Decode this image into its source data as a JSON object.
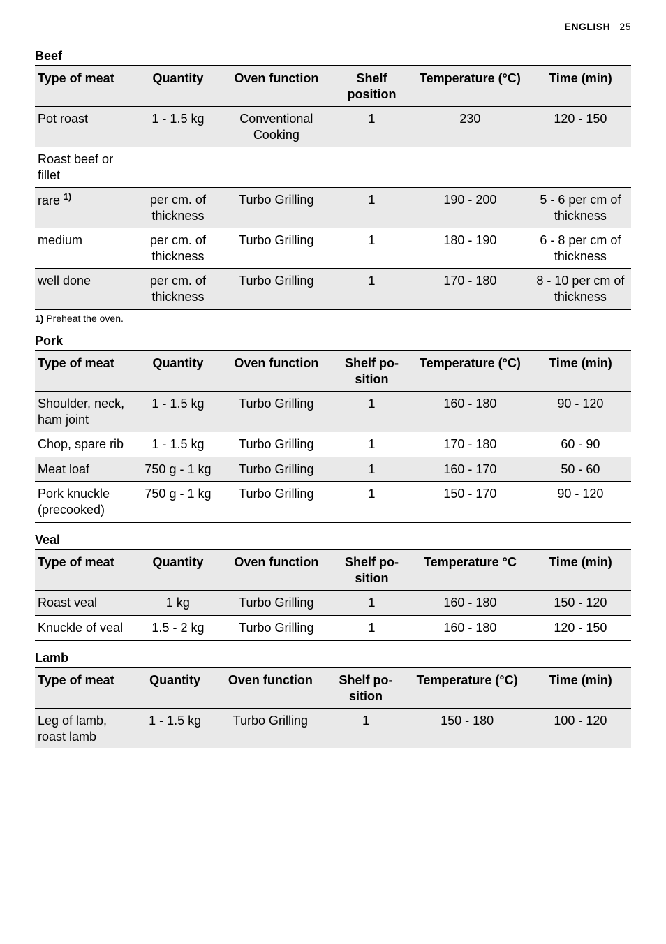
{
  "header": {
    "lang": "ENGLISH",
    "page": "25"
  },
  "sections": [
    {
      "title": "Beef",
      "columns": [
        "Type of meat",
        "Quantity",
        "Oven func­tion",
        "Shelf position",
        "Temperature (°C)",
        "Time (min)"
      ],
      "col_widths": [
        "17%",
        "14%",
        "19%",
        "13%",
        "20%",
        "17%"
      ],
      "rows": [
        {
          "shade": "odd",
          "cells": [
            "Pot roast",
            "1 - 1.5 kg",
            "Conventional Cooking",
            "1",
            "230",
            "120 - 150"
          ]
        },
        {
          "shade": "even",
          "cells": [
            "Roast beef or fillet",
            "",
            "",
            "",
            "",
            ""
          ]
        },
        {
          "shade": "odd",
          "cells": [
            "rare <sup>1)</sup>",
            "per cm. of thick­ness",
            "Turbo Grill­ing",
            "1",
            "190 - 200",
            "5 - 6 per cm of thickness"
          ]
        },
        {
          "shade": "even",
          "cells": [
            "medium",
            "per cm. of thick­ness",
            "Turbo Grill­ing",
            "1",
            "180 - 190",
            "6 - 8 per cm of thickness"
          ]
        },
        {
          "shade": "odd",
          "cells": [
            "well done",
            "per cm. of thick­ness",
            "Turbo Grill­ing",
            "1",
            "170 - 180",
            "8 - 10 per cm of thickness"
          ]
        }
      ],
      "footnote": {
        "num": "1)",
        "text": "Preheat the oven."
      }
    },
    {
      "title": "Pork",
      "columns": [
        "Type of meat",
        "Quantity",
        "Oven func­tion",
        "Shelf po­sition",
        "Temperature (°C)",
        "Time (min)"
      ],
      "col_widths": [
        "17%",
        "14%",
        "19%",
        "13%",
        "20%",
        "17%"
      ],
      "rows": [
        {
          "shade": "odd",
          "cells": [
            "Shoulder, neck, ham joint",
            "1 - 1.5 kg",
            "Turbo Grill­ing",
            "1",
            "160 - 180",
            "90 - 120"
          ]
        },
        {
          "shade": "even",
          "cells": [
            "Chop, spare rib",
            "1 - 1.5 kg",
            "Turbo Grill­ing",
            "1",
            "170 - 180",
            "60 - 90"
          ]
        },
        {
          "shade": "odd",
          "cells": [
            "Meat loaf",
            "750 g - 1 kg",
            "Turbo Grill­ing",
            "1",
            "160 - 170",
            "50 - 60"
          ]
        },
        {
          "shade": "even",
          "cells": [
            "Pork knuck­le (pre­cooked)",
            "750 g - 1 kg",
            "Turbo Grill­ing",
            "1",
            "150 - 170",
            "90 - 120"
          ]
        }
      ]
    },
    {
      "title": "Veal",
      "columns": [
        "Type of meat",
        "Quantity",
        "Oven func­tion",
        "Shelf po­sition",
        "Temperature °C",
        "Time (min)"
      ],
      "col_widths": [
        "17%",
        "14%",
        "19%",
        "13%",
        "20%",
        "17%"
      ],
      "rows": [
        {
          "shade": "odd",
          "cells": [
            "Roast veal",
            "1 kg",
            "Turbo Grill­ing",
            "1",
            "160 - 180",
            "150 - 120"
          ]
        },
        {
          "shade": "even",
          "cells": [
            "Knuckle of veal",
            "1.5 - 2 kg",
            "Turbo Grill­ing",
            "1",
            "160 - 180",
            "120 - 150"
          ]
        }
      ]
    },
    {
      "title": "Lamb",
      "columns": [
        "Type of meat",
        "Quanti­ty",
        "Oven func­tion",
        "Shelf po­sition",
        "Temperature (°C)",
        "Time (min)"
      ],
      "col_widths": [
        "17%",
        "13%",
        "19%",
        "13%",
        "21%",
        "17%"
      ],
      "rows": [
        {
          "shade": "odd",
          "cells": [
            "Leg of lamb, roast lamb",
            "1 - 1.5 kg",
            "Turbo Grill­ing",
            "1",
            "150 - 180",
            "100 - 120"
          ]
        }
      ],
      "open_bottom": true
    }
  ]
}
